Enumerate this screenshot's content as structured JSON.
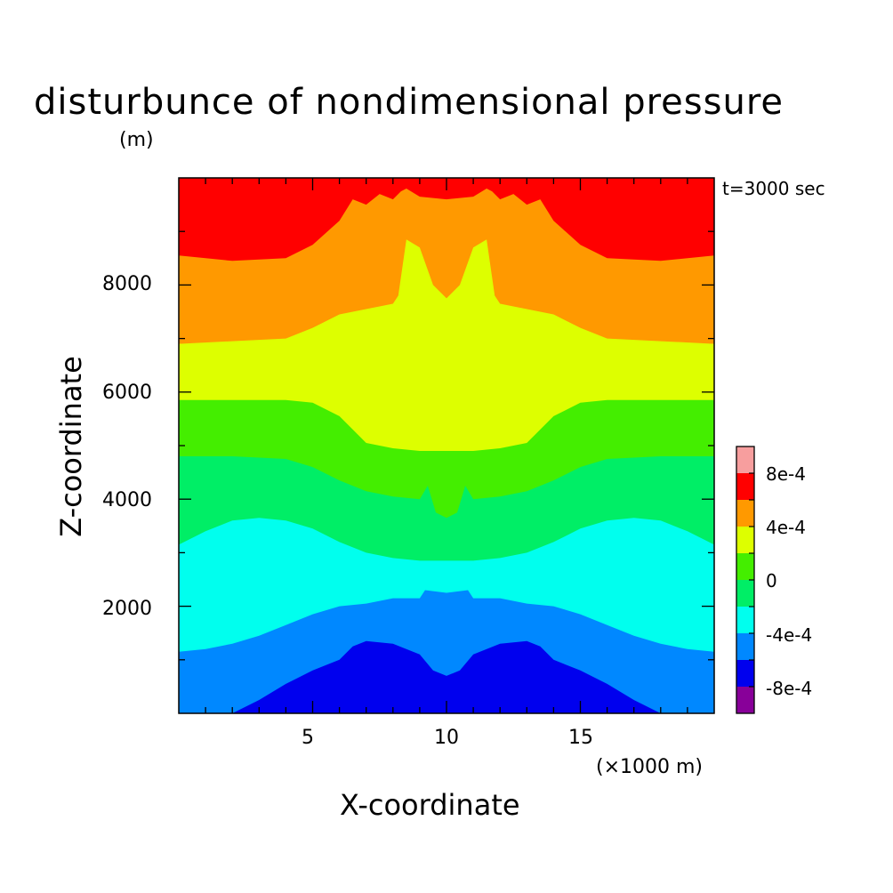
{
  "title": "disturbunce of nondimensional pressure",
  "unit_label": "(m)",
  "time_label": "t=3000 sec",
  "chart_data": {
    "type": "heatmap",
    "title": "disturbunce of nondimensional pressure",
    "xlabel": "X-coordinate",
    "ylabel": "Z-coordinate",
    "x_unit": "(×1000 m)",
    "xlim": [
      0,
      20
    ],
    "ylim": [
      0,
      10000
    ],
    "xticks": [
      "5",
      "10",
      "15"
    ],
    "yticks": [
      "2000",
      "4000",
      "6000",
      "8000"
    ],
    "colorbar": {
      "tick_labels": [
        "8e-4",
        "4e-4",
        "0",
        "-4e-4",
        "-8e-4"
      ],
      "levels": [
        {
          "min": 0.001,
          "color": "#f79e9e"
        },
        {
          "min": 0.0008,
          "color": "#ff0000"
        },
        {
          "min": 0.0004,
          "color": "#ff9900"
        },
        {
          "min": 0.0002,
          "color": "#ddff00"
        },
        {
          "min": 0.0,
          "color": "#44ee00"
        },
        {
          "min": -0.0002,
          "color": "#00ee66"
        },
        {
          "min": -0.0004,
          "color": "#00ffee"
        },
        {
          "min": -0.0006,
          "color": "#0088ff"
        },
        {
          "min": -0.0008,
          "color": "#0000ee"
        },
        {
          "min": -0.001,
          "color": "#880099"
        }
      ]
    },
    "boundaries": [
      {
        "level": -0.0008,
        "points": [
          [
            0,
            0
          ],
          [
            2,
            0
          ],
          [
            3,
            250
          ],
          [
            4,
            550
          ],
          [
            5,
            800
          ],
          [
            6,
            1000
          ],
          [
            6.5,
            1250
          ],
          [
            7,
            1350
          ],
          [
            8,
            1300
          ],
          [
            9,
            1100
          ],
          [
            9.5,
            800
          ],
          [
            10,
            700
          ],
          [
            10.5,
            800
          ],
          [
            11,
            1100
          ],
          [
            12,
            1300
          ],
          [
            13,
            1350
          ],
          [
            13.5,
            1250
          ],
          [
            14,
            1000
          ],
          [
            15,
            800
          ],
          [
            16,
            550
          ],
          [
            17,
            250
          ],
          [
            18,
            0
          ],
          [
            20,
            0
          ]
        ]
      },
      {
        "level": -0.0006,
        "points": [
          [
            0,
            1150
          ],
          [
            1,
            1200
          ],
          [
            2,
            1300
          ],
          [
            3,
            1450
          ],
          [
            4,
            1650
          ],
          [
            5,
            1850
          ],
          [
            6,
            2000
          ],
          [
            7,
            2050
          ],
          [
            8,
            2150
          ],
          [
            9,
            2150
          ],
          [
            9.2,
            2300
          ],
          [
            10,
            2250
          ],
          [
            10.8,
            2300
          ],
          [
            11,
            2150
          ],
          [
            12,
            2150
          ],
          [
            13,
            2050
          ],
          [
            14,
            2000
          ],
          [
            15,
            1850
          ],
          [
            16,
            1650
          ],
          [
            17,
            1450
          ],
          [
            18,
            1300
          ],
          [
            19,
            1200
          ],
          [
            20,
            1150
          ]
        ]
      },
      {
        "level": -0.0004,
        "points": [
          [
            0,
            3150
          ],
          [
            1,
            3400
          ],
          [
            2,
            3600
          ],
          [
            3,
            3650
          ],
          [
            4,
            3600
          ],
          [
            5,
            3450
          ],
          [
            6,
            3200
          ],
          [
            7,
            3000
          ],
          [
            8,
            2900
          ],
          [
            9,
            2850
          ],
          [
            10,
            2850
          ],
          [
            11,
            2850
          ],
          [
            12,
            2900
          ],
          [
            13,
            3000
          ],
          [
            14,
            3200
          ],
          [
            15,
            3450
          ],
          [
            16,
            3600
          ],
          [
            17,
            3650
          ],
          [
            18,
            3600
          ],
          [
            19,
            3400
          ],
          [
            20,
            3150
          ]
        ]
      },
      {
        "level": -0.0002,
        "points": [
          [
            0,
            4800
          ],
          [
            2,
            4800
          ],
          [
            4,
            4750
          ],
          [
            5,
            4600
          ],
          [
            6,
            4350
          ],
          [
            7,
            4150
          ],
          [
            8,
            4050
          ],
          [
            9,
            4000
          ],
          [
            9.3,
            4250
          ],
          [
            9.6,
            3750
          ],
          [
            10,
            3650
          ],
          [
            10.4,
            3750
          ],
          [
            10.7,
            4250
          ],
          [
            11,
            4000
          ],
          [
            12,
            4050
          ],
          [
            13,
            4150
          ],
          [
            14,
            4350
          ],
          [
            15,
            4600
          ],
          [
            16,
            4750
          ],
          [
            18,
            4800
          ],
          [
            20,
            4800
          ]
        ]
      },
      {
        "level": 0.0,
        "points": [
          [
            0,
            5850
          ],
          [
            2,
            5850
          ],
          [
            4,
            5850
          ],
          [
            5,
            5800
          ],
          [
            6,
            5550
          ],
          [
            6.5,
            5300
          ],
          [
            7,
            5050
          ],
          [
            8,
            4950
          ],
          [
            9,
            4900
          ],
          [
            10,
            4900
          ],
          [
            11,
            4900
          ],
          [
            12,
            4950
          ],
          [
            13,
            5050
          ],
          [
            13.5,
            5300
          ],
          [
            14,
            5550
          ],
          [
            15,
            5800
          ],
          [
            16,
            5850
          ],
          [
            18,
            5850
          ],
          [
            20,
            5850
          ]
        ]
      },
      {
        "level": 0.0002,
        "points": [
          [
            0,
            6900
          ],
          [
            2,
            6950
          ],
          [
            4,
            7000
          ],
          [
            5,
            7200
          ],
          [
            6,
            7450
          ],
          [
            7,
            7550
          ],
          [
            8,
            7650
          ],
          [
            8.2,
            7800
          ],
          [
            8.5,
            8850
          ],
          [
            9,
            8700
          ],
          [
            9.5,
            8000
          ],
          [
            10,
            7750
          ],
          [
            10.5,
            8000
          ],
          [
            11,
            8700
          ],
          [
            11.5,
            8850
          ],
          [
            11.8,
            7800
          ],
          [
            12,
            7650
          ],
          [
            13,
            7550
          ],
          [
            14,
            7450
          ],
          [
            15,
            7200
          ],
          [
            16,
            7000
          ],
          [
            18,
            6950
          ],
          [
            20,
            6900
          ]
        ]
      },
      {
        "level": 0.0004,
        "points": [
          [
            0,
            8550
          ],
          [
            2,
            8450
          ],
          [
            4,
            8500
          ],
          [
            5,
            8750
          ],
          [
            6,
            9200
          ],
          [
            6.5,
            9600
          ],
          [
            7,
            9500
          ],
          [
            7.5,
            9700
          ],
          [
            8,
            9600
          ],
          [
            8.3,
            9750
          ],
          [
            8.5,
            9800
          ],
          [
            9,
            9650
          ],
          [
            10,
            9600
          ],
          [
            11,
            9650
          ],
          [
            11.5,
            9800
          ],
          [
            11.7,
            9750
          ],
          [
            12,
            9600
          ],
          [
            12.5,
            9700
          ],
          [
            13,
            9500
          ],
          [
            13.5,
            9600
          ],
          [
            14,
            9200
          ],
          [
            15,
            8750
          ],
          [
            16,
            8500
          ],
          [
            18,
            8450
          ],
          [
            20,
            8550
          ]
        ]
      }
    ]
  }
}
